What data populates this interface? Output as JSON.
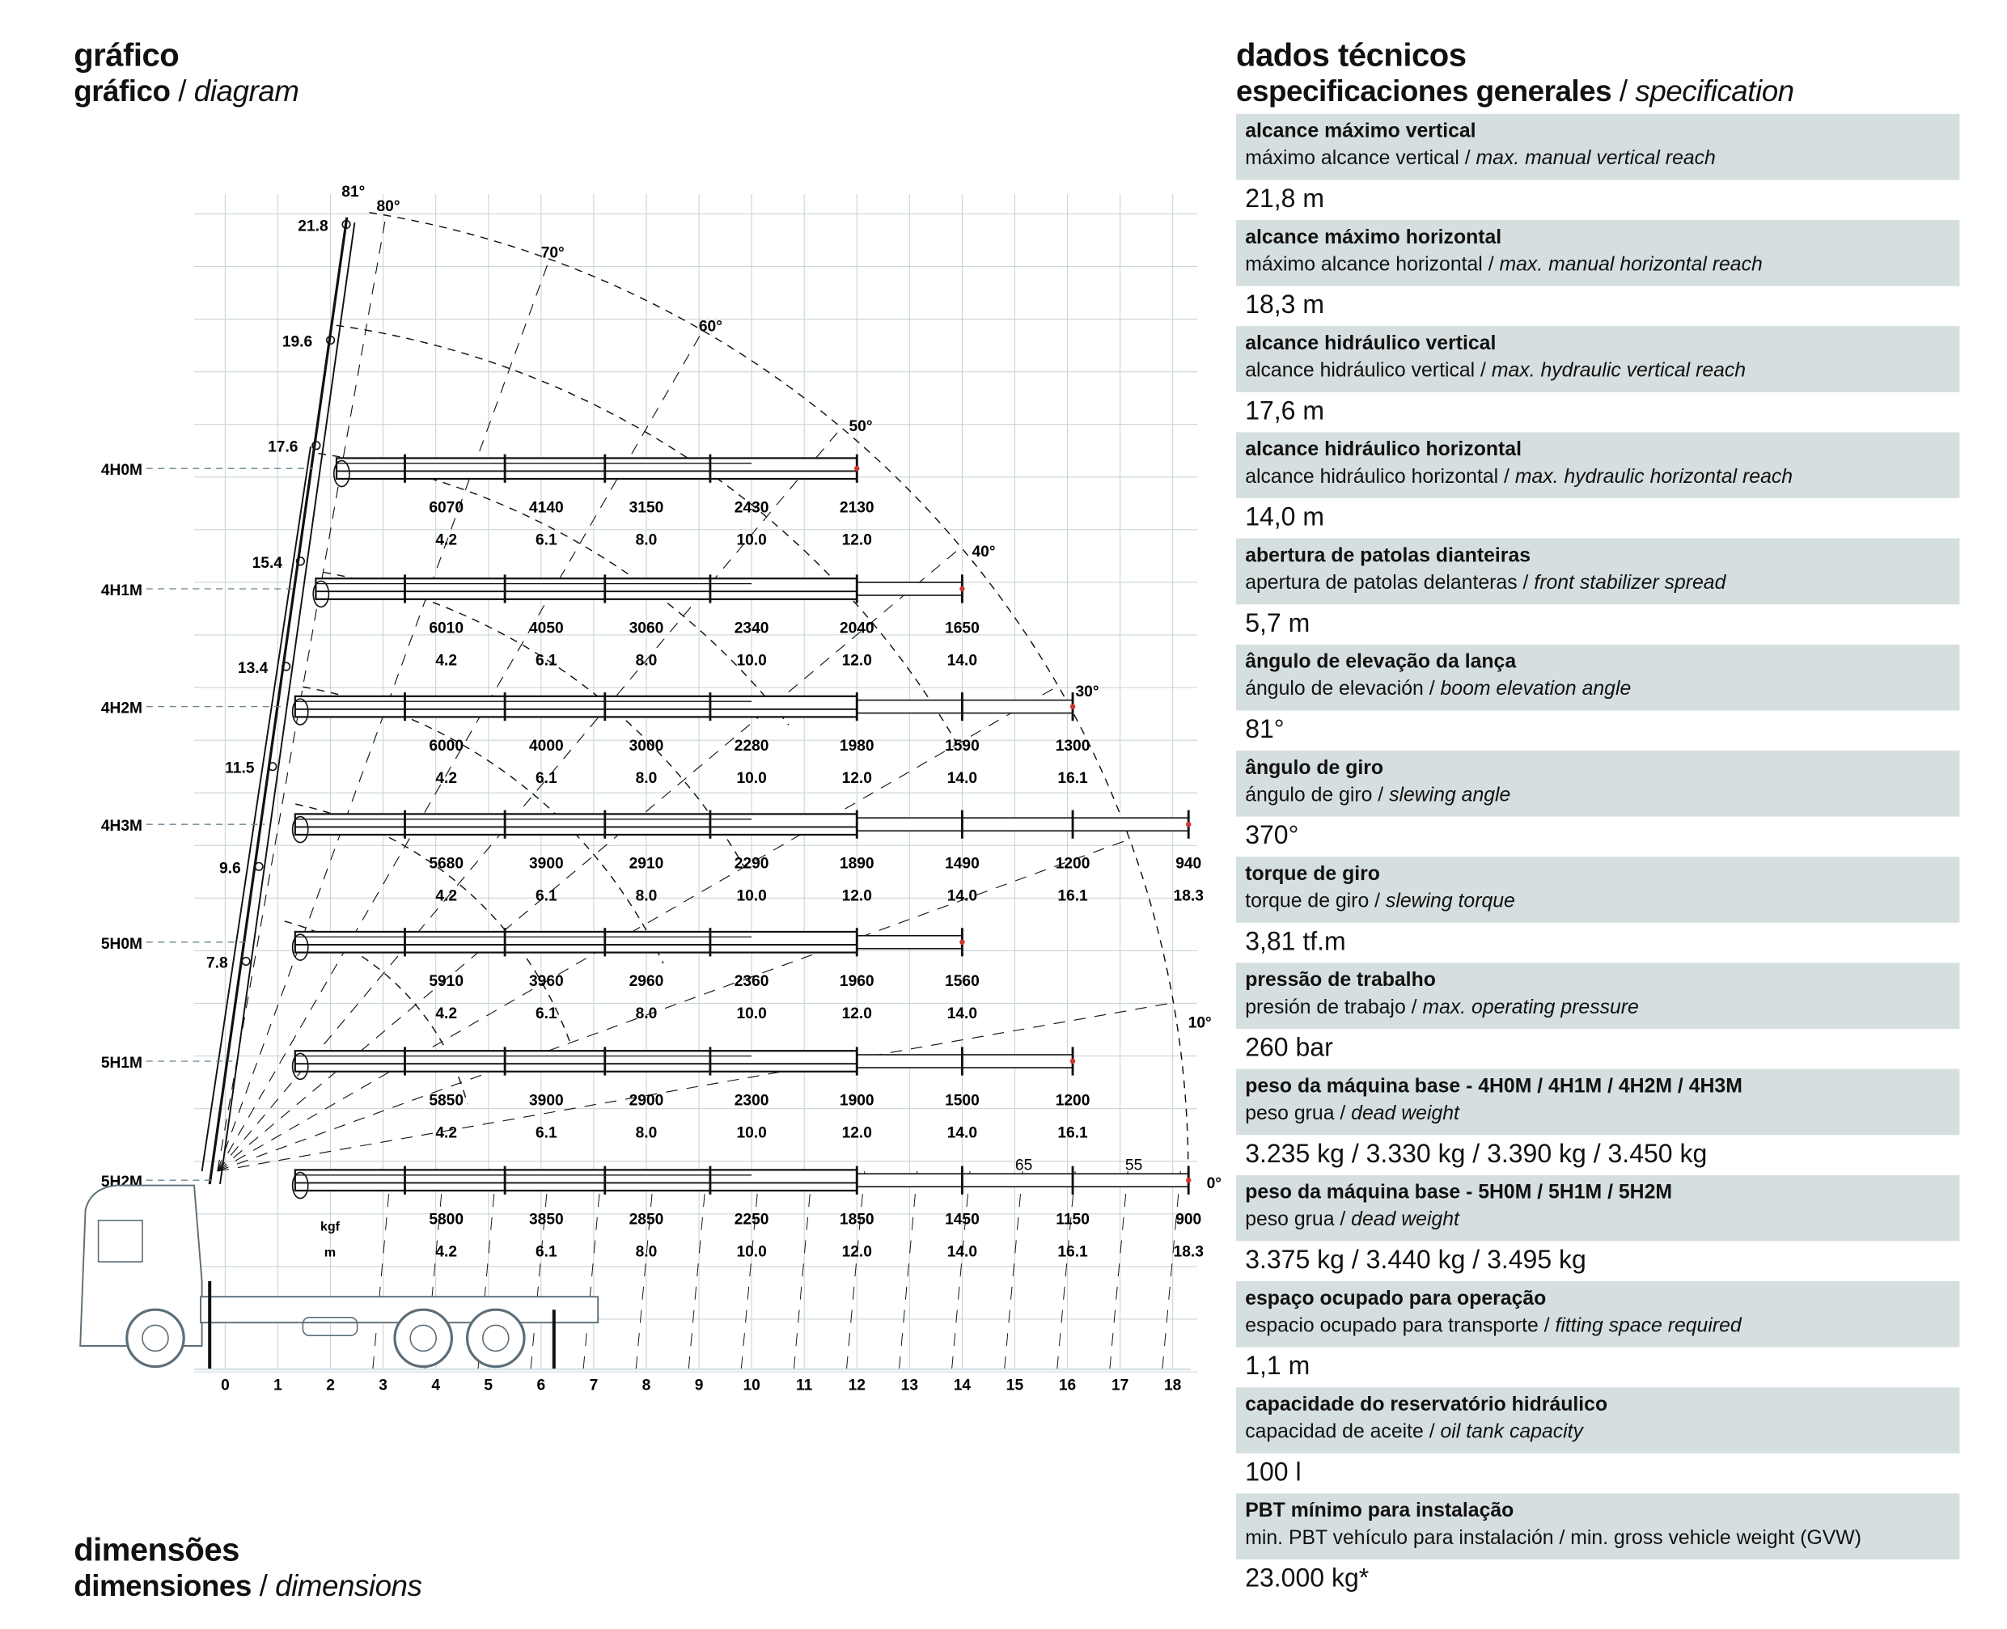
{
  "left_header": {
    "title": "gráfico",
    "subtitle": "gráfico",
    "separator": " / ",
    "subtitle_en": "diagram"
  },
  "right_header": {
    "title": "dados técnicos",
    "subtitle": "especificaciones generales",
    "separator": " / ",
    "subtitle_en": "specification"
  },
  "bottom_header": {
    "title": "dimensões",
    "subtitle": "dimensiones",
    "separator": " / ",
    "subtitle_en": "dimensions"
  },
  "specs": [
    {
      "title": "alcance máximo vertical",
      "sub": "máximo alcance vertical / ",
      "sub_en": "max. manual vertical reach",
      "value": "21,8 m"
    },
    {
      "title": "alcance máximo horizontal",
      "sub": "máximo alcance horizontal / ",
      "sub_en": "max. manual horizontal reach",
      "value": "18,3 m"
    },
    {
      "title": "alcance hidráulico vertical",
      "sub": "alcance hidráulico vertical / ",
      "sub_en": "max. hydraulic vertical reach",
      "value": "17,6 m"
    },
    {
      "title": "alcance hidráulico horizontal",
      "sub": "alcance hidráulico horizontal / ",
      "sub_en": "max. hydraulic horizontal reach",
      "value": "14,0 m"
    },
    {
      "title": "abertura de patolas dianteiras",
      "sub": "apertura de patolas delanteras / ",
      "sub_en": "front stabilizer spread",
      "value": "5,7 m"
    },
    {
      "title": "ângulo de elevação da lança",
      "sub": "ángulo de elevación / ",
      "sub_en": "boom elevation angle",
      "value": "81°"
    },
    {
      "title": "ângulo de giro",
      "sub": "ángulo de giro / ",
      "sub_en": "slewing angle",
      "value": "370°"
    },
    {
      "title": "torque de giro",
      "sub": "torque de giro / ",
      "sub_en": "slewing torque",
      "value": "3,81 tf.m"
    },
    {
      "title": "pressão de trabalho",
      "sub": "presión de trabajo / ",
      "sub_en": "max. operating pressure",
      "value": "260 bar"
    },
    {
      "title": "peso da máquina base - 4H0M / 4H1M / 4H2M / 4H3M",
      "sub": "peso grua / ",
      "sub_en": "dead weight",
      "value": "3.235 kg / 3.330 kg / 3.390 kg / 3.450 kg"
    },
    {
      "title": "peso da máquina base - 5H0M / 5H1M / 5H2M",
      "sub": "peso grua / ",
      "sub_en": "dead weight",
      "value": "3.375 kg / 3.440 kg / 3.495 kg"
    },
    {
      "title": "espaço ocupado para operação",
      "sub": "espacio ocupado para transporte / ",
      "sub_en": "fitting space required",
      "value": "1,1 m"
    },
    {
      "title": "capacidade do reservatório hidráulico",
      "sub": "capacidad de aceite / ",
      "sub_en": "oil tank capacity",
      "value": "100 l"
    },
    {
      "title": "PBT mínimo para instalação",
      "sub": "min. PBT vehículo para instalación / min. gross vehicle weight (GVW)",
      "sub_en": "",
      "value": "23.000 kg*"
    }
  ],
  "diagram": {
    "x_ticks": [
      "0",
      "1",
      "2",
      "3",
      "4",
      "5",
      "6",
      "7",
      "8",
      "9",
      "10",
      "11",
      "12",
      "13",
      "14",
      "15",
      "16",
      "17",
      "18"
    ],
    "height_labels": [
      "21.8",
      "19.6",
      "17.6",
      "15.4",
      "13.4",
      "11.5",
      "9.6",
      "7.8"
    ],
    "heights": [
      21.8,
      19.6,
      17.6,
      15.4,
      13.4,
      11.5,
      9.6,
      7.8
    ],
    "angle_labels": [
      "81°",
      "80°",
      "70°",
      "60°",
      "50°",
      "40°",
      "30°",
      "10°",
      "0°"
    ],
    "unit_load": "kgf",
    "unit_radius": "m",
    "extra_labels": [
      "65",
      "55"
    ],
    "colors": {
      "grid": "#c9d5dc",
      "line": "#111111",
      "accent_tip": "#d0342c"
    },
    "configs": [
      {
        "name": "4H0M",
        "loads": [
          "6070",
          "4140",
          "3150",
          "2430",
          "2130"
        ],
        "radii": [
          "4.2",
          "6.1",
          "8.0",
          "10.0",
          "12.0"
        ]
      },
      {
        "name": "4H1M",
        "loads": [
          "6010",
          "4050",
          "3060",
          "2340",
          "2040",
          "1650"
        ],
        "radii": [
          "4.2",
          "6.1",
          "8.0",
          "10.0",
          "12.0",
          "14.0"
        ]
      },
      {
        "name": "4H2M",
        "loads": [
          "6000",
          "4000",
          "3000",
          "2280",
          "1980",
          "1590",
          "1300"
        ],
        "radii": [
          "4.2",
          "6.1",
          "8.0",
          "10.0",
          "12.0",
          "14.0",
          "16.1"
        ]
      },
      {
        "name": "4H3M",
        "loads": [
          "5680",
          "3900",
          "2910",
          "2290",
          "1890",
          "1490",
          "1200",
          "940"
        ],
        "radii": [
          "4.2",
          "6.1",
          "8.0",
          "10.0",
          "12.0",
          "14.0",
          "16.1",
          "18.3"
        ]
      },
      {
        "name": "5H0M",
        "loads": [
          "5910",
          "3960",
          "2960",
          "2360",
          "1960",
          "1560"
        ],
        "radii": [
          "4.2",
          "6.1",
          "8.0",
          "10.0",
          "12.0",
          "14.0"
        ]
      },
      {
        "name": "5H1M",
        "loads": [
          "5850",
          "3900",
          "2900",
          "2300",
          "1900",
          "1500",
          "1200"
        ],
        "radii": [
          "4.2",
          "6.1",
          "8.0",
          "10.0",
          "12.0",
          "14.0",
          "16.1"
        ]
      },
      {
        "name": "5H2M",
        "loads": [
          "5800",
          "3850",
          "2850",
          "2250",
          "1850",
          "1450",
          "1150",
          "900"
        ],
        "radii": [
          "4.2",
          "6.1",
          "8.0",
          "10.0",
          "12.0",
          "14.0",
          "16.1",
          "18.3"
        ]
      }
    ]
  }
}
